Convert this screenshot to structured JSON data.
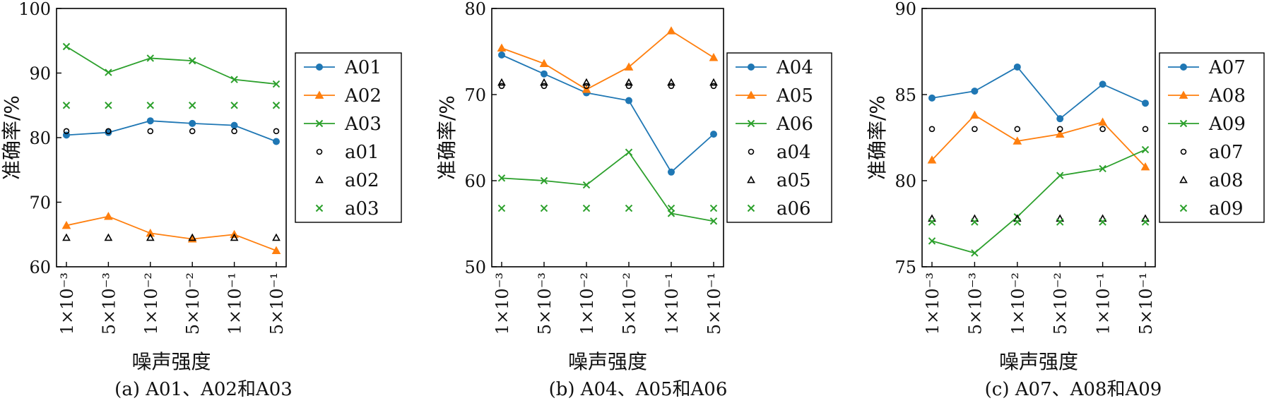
{
  "colors": {
    "blue": "#1f77b4",
    "orange": "#ff7f0e",
    "green": "#2ca02c",
    "black": "#000000"
  },
  "chart_data": [
    {
      "type": "line",
      "caption": "(a) A01、A02和A03",
      "xlabel": "噪声强度",
      "ylabel": "准确率/%",
      "categories": [
        "1×10⁻³",
        "5×10⁻³",
        "1×10⁻²",
        "5×10⁻²",
        "1×10⁻¹",
        "5×10⁻¹"
      ],
      "ylim": [
        60,
        100
      ],
      "yticks": [
        "60",
        "70",
        "80",
        "90",
        "100"
      ],
      "legend_position": "right",
      "series": [
        {
          "name": "A01",
          "values": [
            80.4,
            80.8,
            82.6,
            82.2,
            81.9,
            79.4
          ],
          "marker": "circle-filled",
          "color": "#1f77b4",
          "line": true
        },
        {
          "name": "A02",
          "values": [
            66.4,
            67.8,
            65.2,
            64.3,
            65.0,
            62.5
          ],
          "marker": "triangle-filled",
          "color": "#ff7f0e",
          "line": true
        },
        {
          "name": "A03",
          "values": [
            94.1,
            90.1,
            92.3,
            91.9,
            89.0,
            88.3
          ],
          "marker": "x",
          "color": "#2ca02c",
          "line": true
        },
        {
          "name": "a01",
          "values": [
            81.0,
            81.0,
            81.0,
            81.0,
            81.0,
            81.0
          ],
          "marker": "circle-open",
          "color": "#000000",
          "line": false
        },
        {
          "name": "a02",
          "values": [
            64.5,
            64.5,
            64.5,
            64.5,
            64.5,
            64.5
          ],
          "marker": "triangle-open",
          "color": "#000000",
          "line": false
        },
        {
          "name": "a03",
          "values": [
            85.0,
            85.0,
            85.0,
            85.0,
            85.0,
            85.0
          ],
          "marker": "x",
          "color": "#2ca02c",
          "line": false
        }
      ]
    },
    {
      "type": "line",
      "caption": "(b) A04、A05和A06",
      "xlabel": "噪声强度",
      "ylabel": "准确率/%",
      "categories": [
        "1×10⁻³",
        "5×10⁻³",
        "1×10⁻²",
        "5×10⁻²",
        "1×10⁻¹",
        "5×10⁻¹"
      ],
      "ylim": [
        50,
        80
      ],
      "yticks": [
        "50",
        "60",
        "70",
        "80"
      ],
      "legend_position": "right",
      "series": [
        {
          "name": "A04",
          "values": [
            74.6,
            72.4,
            70.2,
            69.3,
            61.0,
            65.4
          ],
          "marker": "circle-filled",
          "color": "#1f77b4",
          "line": true
        },
        {
          "name": "A05",
          "values": [
            75.4,
            73.6,
            70.6,
            73.2,
            77.4,
            74.3
          ],
          "marker": "triangle-filled",
          "color": "#ff7f0e",
          "line": true
        },
        {
          "name": "A06",
          "values": [
            60.3,
            60.0,
            59.5,
            63.3,
            56.2,
            55.3
          ],
          "marker": "x",
          "color": "#2ca02c",
          "line": true
        },
        {
          "name": "a04",
          "values": [
            71.0,
            71.0,
            71.0,
            71.0,
            71.0,
            71.0
          ],
          "marker": "circle-open",
          "color": "#000000",
          "line": false
        },
        {
          "name": "a05",
          "values": [
            71.4,
            71.4,
            71.4,
            71.4,
            71.4,
            71.4
          ],
          "marker": "triangle-open",
          "color": "#000000",
          "line": false
        },
        {
          "name": "a06",
          "values": [
            56.8,
            56.8,
            56.8,
            56.8,
            56.8,
            56.8
          ],
          "marker": "x",
          "color": "#2ca02c",
          "line": false
        }
      ]
    },
    {
      "type": "line",
      "caption": "(c) A07、A08和A09",
      "xlabel": "噪声强度",
      "ylabel": "准确率/%",
      "categories": [
        "1×10⁻³",
        "5×10⁻³",
        "1×10⁻²",
        "5×10⁻²",
        "1×10⁻¹",
        "5×10⁻¹"
      ],
      "ylim": [
        75,
        90
      ],
      "yticks": [
        "75",
        "80",
        "85",
        "90"
      ],
      "legend_position": "right",
      "series": [
        {
          "name": "A07",
          "values": [
            84.8,
            85.2,
            86.6,
            83.6,
            85.6,
            84.5
          ],
          "marker": "circle-filled",
          "color": "#1f77b4",
          "line": true
        },
        {
          "name": "A08",
          "values": [
            81.2,
            83.8,
            82.3,
            82.7,
            83.4,
            80.8
          ],
          "marker": "triangle-filled",
          "color": "#ff7f0e",
          "line": true
        },
        {
          "name": "A09",
          "values": [
            76.5,
            75.8,
            77.9,
            80.3,
            80.7,
            81.8
          ],
          "marker": "x",
          "color": "#2ca02c",
          "line": true
        },
        {
          "name": "a07",
          "values": [
            83.0,
            83.0,
            83.0,
            83.0,
            83.0,
            83.0
          ],
          "marker": "circle-open",
          "color": "#000000",
          "line": false
        },
        {
          "name": "a08",
          "values": [
            77.8,
            77.8,
            77.8,
            77.8,
            77.8,
            77.8
          ],
          "marker": "triangle-open",
          "color": "#000000",
          "line": false
        },
        {
          "name": "a09",
          "values": [
            77.6,
            77.6,
            77.6,
            77.6,
            77.6,
            77.6
          ],
          "marker": "x",
          "color": "#2ca02c",
          "line": false
        }
      ]
    }
  ]
}
